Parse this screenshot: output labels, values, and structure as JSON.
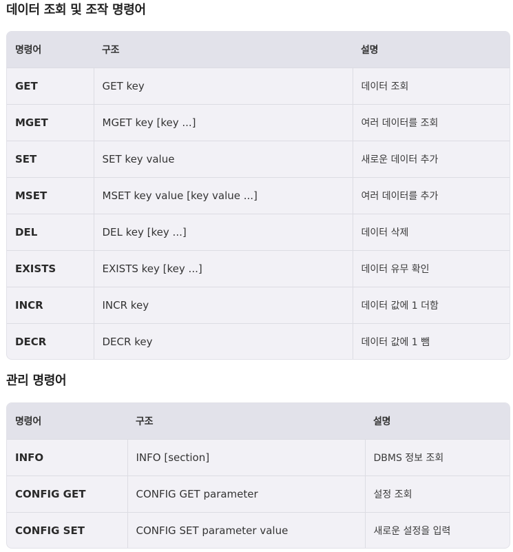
{
  "sections": [
    {
      "title": "데이터 조회 및 조작 명령어",
      "headers": [
        "명령어",
        "구조",
        "설명"
      ],
      "rows": [
        [
          "GET",
          "GET key",
          "데이터 조회"
        ],
        [
          "MGET",
          "MGET key [key ...]",
          "여러 데이터를 조회"
        ],
        [
          "SET",
          "SET key value",
          "새로운 데이터 추가"
        ],
        [
          "MSET",
          "MSET key value [key value ...]",
          "여러 데이터를 추가"
        ],
        [
          "DEL",
          "DEL key [key ...]",
          "데이터 삭제"
        ],
        [
          "EXISTS",
          "EXISTS key [key ...]",
          "데이터 유무 확인"
        ],
        [
          "INCR",
          "INCR key",
          "데이터 값에 1 더함"
        ],
        [
          "DECR",
          "DECR key",
          "데이터 값에 1 뺌"
        ]
      ]
    },
    {
      "title": "관리 명령어",
      "headers": [
        "명령어",
        "구조",
        "설명"
      ],
      "rows": [
        [
          "INFO",
          "INFO [section]",
          "DBMS 정보 조회"
        ],
        [
          "CONFIG GET",
          "CONFIG GET parameter",
          "설정 조회"
        ],
        [
          "CONFIG SET",
          "CONFIG SET parameter value",
          "새로운 설정을 입력"
        ]
      ]
    }
  ]
}
